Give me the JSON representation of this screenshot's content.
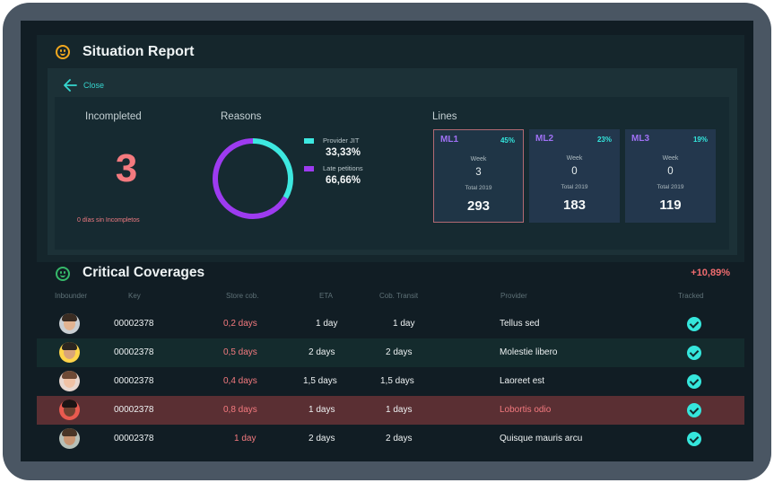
{
  "situation_report": {
    "title": "Situation Report",
    "close_label": "Close",
    "incompleted": {
      "heading": "Incompleted",
      "count": "3",
      "note": "0 días sin Incompletos"
    },
    "reasons": {
      "heading": "Reasons",
      "items": [
        {
          "name": "Provider JIT",
          "value": "33,33%",
          "fraction": 0.3333,
          "color": "#3de8e0"
        },
        {
          "name": "Late petitions",
          "value": "66,66%",
          "fraction": 0.6666,
          "color": "#9d3bf0"
        }
      ]
    },
    "lines": {
      "heading": "Lines",
      "cards": [
        {
          "name": "ML1",
          "pct": "45%",
          "week_label": "Week",
          "week": "3",
          "total_label": "Total 2019",
          "total": "293",
          "name_color": "#a071f5"
        },
        {
          "name": "ML2",
          "pct": "23%",
          "week_label": "Week",
          "week": "0",
          "total_label": "Total 2019",
          "total": "183",
          "name_color": "#a071f5"
        },
        {
          "name": "ML3",
          "pct": "19%",
          "week_label": "Week",
          "week": "0",
          "total_label": "Total 2019",
          "total": "119",
          "name_color": "#a071f5"
        }
      ]
    }
  },
  "critical_coverages": {
    "title": "Critical Coverages",
    "change": "+10,89%",
    "columns": [
      "Inbounder",
      "Key",
      "Store cob.",
      "ETA",
      "Cob. Transit",
      "Provider",
      "Tracked"
    ],
    "rows": [
      {
        "key": "00002378",
        "store": "0,2 days",
        "eta": "1 day",
        "transit": "1 day",
        "provider": "Tellus sed",
        "tracked": true,
        "highlight": false
      },
      {
        "key": "00002378",
        "store": "0,5 days",
        "eta": "2 days",
        "transit": "2 days",
        "provider": "Molestie libero",
        "tracked": true,
        "highlight": false
      },
      {
        "key": "00002378",
        "store": "0,4 days",
        "eta": "1,5 days",
        "transit": "1,5 days",
        "provider": "Laoreet est",
        "tracked": true,
        "highlight": false
      },
      {
        "key": "00002378",
        "store": "0,8 days",
        "eta": "1 days",
        "transit": "1 days",
        "provider": "Lobortis odio",
        "tracked": true,
        "highlight": true
      },
      {
        "key": "00002378",
        "store": "1 day",
        "eta": "2 days",
        "transit": "2 days",
        "provider": "Quisque mauris arcu",
        "tracked": true,
        "highlight": false
      }
    ]
  },
  "colors": {
    "accent_cyan": "#36d6cf",
    "alert_red": "#f47a7f",
    "purple": "#9d3bf0",
    "row_highlight": "#5a2f33"
  }
}
